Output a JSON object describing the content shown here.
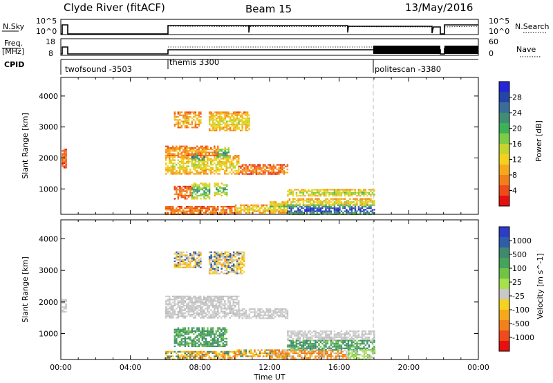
{
  "header": {
    "title": "Clyde River (fitACF)",
    "beam": "Beam 15",
    "date": "13/May/2016"
  },
  "status_panels": {
    "nsky_label": "N.Sky",
    "nsky_ticks": [
      "10^5",
      "10^0"
    ],
    "nsearch_label": "N.Search",
    "nsearch_ticks": [
      "10^5",
      "10^0"
    ],
    "freq_label_1": "Freq.",
    "freq_label_2": "[MHz]",
    "freq_ticks": [
      "18",
      "8"
    ],
    "nave_label": "Nave",
    "nave_ticks": [
      "60",
      "0"
    ],
    "cpid_label": "CPID",
    "modes": [
      {
        "name": "twofsound",
        "cpid": "-3503",
        "start_hour": 0
      },
      {
        "name": "themis",
        "cpid": "3300",
        "start_hour": 6
      },
      {
        "name": "politescan",
        "cpid": "-3380",
        "start_hour": 18
      }
    ]
  },
  "chart_data": [
    {
      "type": "heatmap",
      "name": "power",
      "ylabel": "Slant Range [km]",
      "xlim": [
        0,
        24
      ],
      "ylim": [
        180,
        4600
      ],
      "yticks": [
        1000,
        2000,
        3000,
        4000
      ],
      "colorbar": {
        "label": "Power [dB]",
        "ticks": [
          "28",
          "24",
          "20",
          "16",
          "12",
          "8",
          "4"
        ],
        "colors": [
          "#2426d4",
          "#2345a8",
          "#3a6e9a",
          "#3f8e74",
          "#3cb257",
          "#7dcc46",
          "#c8d42e",
          "#f2d21e",
          "#f5a81b",
          "#f27f1b",
          "#ef4a1a",
          "#e61010"
        ]
      },
      "regions": [
        {
          "x": [
            0.05,
            0.3
          ],
          "y": [
            1700,
            2300
          ],
          "level": 0.2
        },
        {
          "x": [
            6.0,
            10.2
          ],
          "y": [
            1500,
            2100
          ],
          "level": 0.45
        },
        {
          "x": [
            10.2,
            13.0
          ],
          "y": [
            1500,
            1800
          ],
          "level": 0.25
        },
        {
          "x": [
            7.5,
            8.2
          ],
          "y": [
            1900,
            2200
          ],
          "level": 0.8
        },
        {
          "x": [
            8.8,
            9.6
          ],
          "y": [
            2000,
            2350
          ],
          "level": 0.75
        },
        {
          "x": [
            6.0,
            9.0
          ],
          "y": [
            2100,
            2400
          ],
          "level": 0.3
        },
        {
          "x": [
            6.5,
            8.0
          ],
          "y": [
            3000,
            3500
          ],
          "level": 0.35
        },
        {
          "x": [
            8.5,
            10.8
          ],
          "y": [
            2900,
            3500
          ],
          "level": 0.45
        },
        {
          "x": [
            6.5,
            7.5
          ],
          "y": [
            700,
            1100
          ],
          "level": 0.25
        },
        {
          "x": [
            7.5,
            8.5
          ],
          "y": [
            700,
            1200
          ],
          "level": 0.7
        },
        {
          "x": [
            8.8,
            9.5
          ],
          "y": [
            800,
            1200
          ],
          "level": 0.65
        },
        {
          "x": [
            6.0,
            10.0
          ],
          "y": [
            180,
            450
          ],
          "level": 0.25
        },
        {
          "x": [
            10.0,
            13.0
          ],
          "y": [
            250,
            500
          ],
          "level": 0.45
        },
        {
          "x": [
            13.0,
            18.0
          ],
          "y": [
            780,
            1000
          ],
          "level": 0.55
        },
        {
          "x": [
            13.0,
            18.0
          ],
          "y": [
            500,
            700
          ],
          "level": 0.45
        },
        {
          "x": [
            12.0,
            13.0
          ],
          "y": [
            300,
            600
          ],
          "level": 0.55
        },
        {
          "x": [
            13.0,
            18.0
          ],
          "y": [
            200,
            500
          ],
          "level": 1.0
        }
      ]
    },
    {
      "type": "heatmap",
      "name": "velocity",
      "ylabel": "Slant Range [km]",
      "xlabel": "Time UT",
      "xlim": [
        0,
        24
      ],
      "ylim": [
        180,
        4600
      ],
      "yticks": [
        1000,
        2000,
        3000,
        4000
      ],
      "xticks": [
        "00:00",
        "04:00",
        "08:00",
        "12:00",
        "16:00",
        "20:00",
        "00:00"
      ],
      "colorbar": {
        "label": "Velocity [m s^-1]",
        "ticks": [
          "1000",
          "500",
          "100",
          "25",
          "-25",
          "-100",
          "-500",
          "-1000"
        ],
        "colors": [
          "#2a3cc8",
          "#2f5da8",
          "#3f8a6e",
          "#45a35a",
          "#6fc446",
          "#a6e04a",
          "#c8c8c8",
          "#f5d21e",
          "#f5a81b",
          "#f2801b",
          "#ef4a1a",
          "#e61010"
        ]
      },
      "regions": [
        {
          "x": [
            0.05,
            0.3
          ],
          "y": [
            1700,
            2100
          ],
          "class": "ground"
        },
        {
          "x": [
            6.0,
            10.2
          ],
          "y": [
            1500,
            2200
          ],
          "class": "ground"
        },
        {
          "x": [
            10.2,
            13.0
          ],
          "y": [
            1500,
            1800
          ],
          "class": "ground"
        },
        {
          "x": [
            6.5,
            8.0
          ],
          "y": [
            3100,
            3600
          ],
          "class": "neg-small"
        },
        {
          "x": [
            8.5,
            10.5
          ],
          "y": [
            2900,
            3600
          ],
          "class": "neg-small"
        },
        {
          "x": [
            6.5,
            9.5
          ],
          "y": [
            600,
            1200
          ],
          "class": "pos-small"
        },
        {
          "x": [
            6.0,
            10.0
          ],
          "y": [
            180,
            450
          ],
          "class": "neg-mid"
        },
        {
          "x": [
            10.0,
            13.0
          ],
          "y": [
            300,
            500
          ],
          "class": "neg-mid"
        },
        {
          "x": [
            12.0,
            16.5
          ],
          "y": [
            200,
            500
          ],
          "class": "neg-large"
        },
        {
          "x": [
            13.0,
            18.0
          ],
          "y": [
            800,
            1100
          ],
          "class": "ground"
        },
        {
          "x": [
            13.0,
            18.0
          ],
          "y": [
            500,
            800
          ],
          "class": "pos-small"
        },
        {
          "x": [
            16.5,
            18.0
          ],
          "y": [
            200,
            500
          ],
          "class": "pos-mid"
        }
      ]
    }
  ]
}
